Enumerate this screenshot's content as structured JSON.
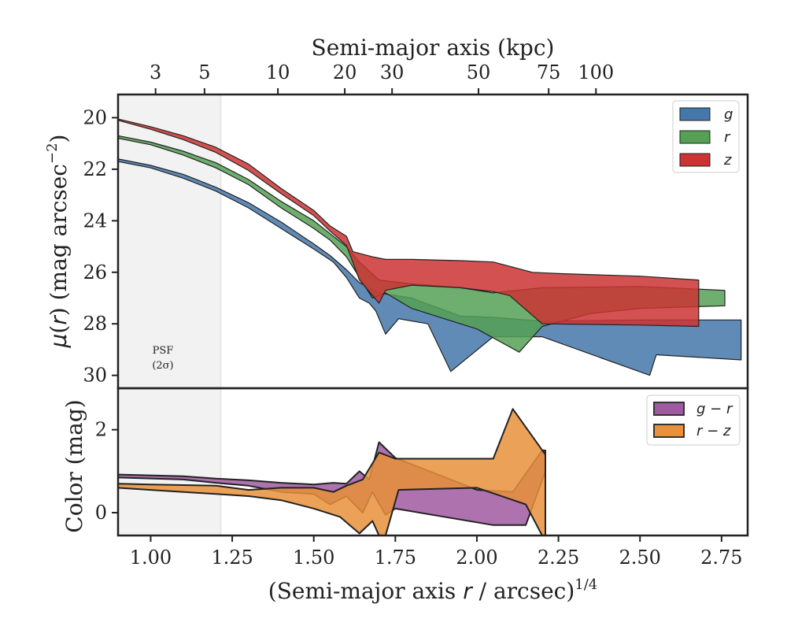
{
  "chart_data": [
    {
      "type": "area",
      "panel": "surface-brightness",
      "top_xlabel": "Semi-major axis (kpc)",
      "top_ticks": [
        {
          "label": "3",
          "at": 1.015
        },
        {
          "label": "5",
          "at": 1.165
        },
        {
          "label": "10",
          "at": 1.39
        },
        {
          "label": "20",
          "at": 1.595
        },
        {
          "label": "30",
          "at": 1.74
        },
        {
          "label": "50",
          "at": 2.005
        },
        {
          "label": "75",
          "at": 2.22
        },
        {
          "label": "100",
          "at": 2.365
        }
      ],
      "ylabel_html": "μ(r) (mag arcsec⁻²)",
      "ylabel_parts": {
        "mu": "μ",
        "r": "r",
        "rest": ") (mag arcsec",
        "sup": "−2",
        "close": ")"
      },
      "xlim": [
        0.9,
        2.83
      ],
      "ylim": [
        30.5,
        19.1
      ],
      "y_ticks": [
        20,
        22,
        24,
        26,
        28,
        30
      ],
      "y_inverted": true,
      "psf_region": [
        0.9,
        1.215
      ],
      "psf_label": [
        "PSF",
        "(2σ)"
      ],
      "legend_position": "top-right",
      "series": [
        {
          "name": "g",
          "color": "#4477aa",
          "upper": [
            [
              0.9,
              21.6
            ],
            [
              1.0,
              21.85
            ],
            [
              1.1,
              22.2
            ],
            [
              1.2,
              22.7
            ],
            [
              1.3,
              23.3
            ],
            [
              1.4,
              24.05
            ],
            [
              1.5,
              24.9
            ],
            [
              1.55,
              25.35
            ],
            [
              1.6,
              25.9
            ],
            [
              1.64,
              26.4
            ],
            [
              1.7,
              26.8
            ],
            [
              1.8,
              27.0
            ],
            [
              1.95,
              27.7
            ],
            [
              2.05,
              27.75
            ],
            [
              2.2,
              27.9
            ],
            [
              2.5,
              27.85
            ],
            [
              2.81,
              27.85
            ]
          ],
          "lower": [
            [
              0.9,
              21.7
            ],
            [
              1.0,
              21.95
            ],
            [
              1.1,
              22.35
            ],
            [
              1.2,
              22.85
            ],
            [
              1.3,
              23.5
            ],
            [
              1.4,
              24.3
            ],
            [
              1.5,
              25.1
            ],
            [
              1.56,
              25.6
            ],
            [
              1.6,
              26.2
            ],
            [
              1.64,
              27.0
            ],
            [
              1.67,
              27.2
            ],
            [
              1.69,
              27.5
            ],
            [
              1.72,
              28.4
            ],
            [
              1.76,
              27.8
            ],
            [
              1.85,
              28.0
            ],
            [
              1.92,
              29.85
            ],
            [
              2.05,
              28.5
            ],
            [
              2.2,
              28.5
            ],
            [
              2.53,
              30.0
            ],
            [
              2.55,
              29.2
            ],
            [
              2.81,
              29.4
            ]
          ]
        },
        {
          "name": "r",
          "color": "#55a055",
          "upper": [
            [
              0.9,
              20.7
            ],
            [
              1.0,
              20.95
            ],
            [
              1.1,
              21.3
            ],
            [
              1.2,
              21.75
            ],
            [
              1.3,
              22.4
            ],
            [
              1.4,
              23.25
            ],
            [
              1.5,
              24.0
            ],
            [
              1.55,
              24.5
            ],
            [
              1.6,
              25.0
            ],
            [
              1.64,
              25.6
            ],
            [
              1.7,
              26.3
            ],
            [
              1.8,
              26.45
            ],
            [
              1.95,
              26.6
            ],
            [
              2.05,
              26.8
            ],
            [
              2.2,
              26.6
            ],
            [
              2.5,
              26.55
            ],
            [
              2.76,
              26.7
            ]
          ],
          "lower": [
            [
              0.9,
              20.8
            ],
            [
              1.0,
              21.05
            ],
            [
              1.1,
              21.45
            ],
            [
              1.2,
              21.95
            ],
            [
              1.3,
              22.6
            ],
            [
              1.4,
              23.5
            ],
            [
              1.5,
              24.3
            ],
            [
              1.55,
              24.75
            ],
            [
              1.6,
              25.4
            ],
            [
              1.64,
              26.2
            ],
            [
              1.68,
              27.0
            ],
            [
              1.72,
              26.8
            ],
            [
              1.8,
              27.4
            ],
            [
              1.9,
              27.8
            ],
            [
              2.0,
              28.2
            ],
            [
              2.13,
              29.1
            ],
            [
              2.2,
              28.1
            ],
            [
              2.35,
              27.6
            ],
            [
              2.5,
              27.4
            ],
            [
              2.76,
              27.3
            ]
          ]
        },
        {
          "name": "z",
          "color": "#cc3333",
          "upper": [
            [
              0.9,
              20.05
            ],
            [
              1.0,
              20.35
            ],
            [
              1.1,
              20.7
            ],
            [
              1.2,
              21.15
            ],
            [
              1.3,
              21.8
            ],
            [
              1.4,
              22.75
            ],
            [
              1.5,
              23.6
            ],
            [
              1.55,
              24.2
            ],
            [
              1.6,
              24.6
            ],
            [
              1.62,
              25.2
            ],
            [
              1.68,
              25.4
            ],
            [
              1.72,
              25.5
            ],
            [
              1.8,
              25.5
            ],
            [
              1.95,
              25.55
            ],
            [
              2.05,
              25.6
            ],
            [
              2.17,
              26.0
            ],
            [
              2.25,
              26.05
            ],
            [
              2.5,
              26.15
            ],
            [
              2.68,
              26.3
            ]
          ],
          "lower": [
            [
              0.9,
              20.1
            ],
            [
              1.0,
              20.45
            ],
            [
              1.1,
              20.85
            ],
            [
              1.2,
              21.35
            ],
            [
              1.3,
              22.05
            ],
            [
              1.4,
              22.95
            ],
            [
              1.5,
              23.8
            ],
            [
              1.55,
              24.4
            ],
            [
              1.6,
              24.95
            ],
            [
              1.64,
              26.3
            ],
            [
              1.7,
              27.2
            ],
            [
              1.72,
              26.7
            ],
            [
              1.8,
              26.5
            ],
            [
              1.95,
              26.6
            ],
            [
              2.05,
              26.75
            ],
            [
              2.1,
              26.9
            ],
            [
              2.2,
              28.0
            ],
            [
              2.5,
              28.05
            ],
            [
              2.68,
              28.1
            ]
          ]
        }
      ]
    },
    {
      "type": "area",
      "panel": "color",
      "xlabel_parts": {
        "pre": "(Semi-major axis ",
        "r": "r",
        "post": " / arcsec)",
        "sup": "1/4"
      },
      "ylabel": "Color (mag)",
      "xlim": [
        0.9,
        2.83
      ],
      "ylim": [
        -0.55,
        3.0
      ],
      "x_ticks": [
        "1.00",
        "1.25",
        "1.50",
        "1.75",
        "2.00",
        "2.25",
        "2.50",
        "2.75"
      ],
      "x_tick_values": [
        1.0,
        1.25,
        1.5,
        1.75,
        2.0,
        2.25,
        2.5,
        2.75
      ],
      "y_ticks": [
        0,
        2
      ],
      "psf_region": [
        0.9,
        1.215
      ],
      "legend_position": "top-right",
      "series": [
        {
          "name": "g − r",
          "color": "#a05aa0",
          "upper": [
            [
              0.9,
              0.92
            ],
            [
              1.1,
              0.88
            ],
            [
              1.2,
              0.82
            ],
            [
              1.3,
              0.78
            ],
            [
              1.4,
              0.72
            ],
            [
              1.5,
              0.68
            ],
            [
              1.56,
              0.72
            ],
            [
              1.6,
              0.7
            ],
            [
              1.64,
              1.0
            ],
            [
              1.67,
              0.8
            ],
            [
              1.7,
              1.7
            ],
            [
              1.75,
              1.32
            ],
            [
              2.0,
              0.55
            ],
            [
              2.11,
              0.5
            ],
            [
              2.2,
              1.5
            ],
            [
              2.21,
              1.5
            ]
          ],
          "lower": [
            [
              0.9,
              0.85
            ],
            [
              1.1,
              0.8
            ],
            [
              1.2,
              0.72
            ],
            [
              1.3,
              0.65
            ],
            [
              1.4,
              0.5
            ],
            [
              1.5,
              0.45
            ],
            [
              1.55,
              0.2
            ],
            [
              1.6,
              0.4
            ],
            [
              1.65,
              0.0
            ],
            [
              1.68,
              0.5
            ],
            [
              1.72,
              -0.05
            ],
            [
              1.75,
              0.1
            ],
            [
              2.05,
              -0.3
            ],
            [
              2.15,
              -0.3
            ],
            [
              2.21,
              1.0
            ]
          ]
        },
        {
          "name": "r − z",
          "color": "#e8903a",
          "upper": [
            [
              0.9,
              0.7
            ],
            [
              1.0,
              0.68
            ],
            [
              1.2,
              0.65
            ],
            [
              1.3,
              0.55
            ],
            [
              1.4,
              0.6
            ],
            [
              1.5,
              0.6
            ],
            [
              1.56,
              0.5
            ],
            [
              1.6,
              0.65
            ],
            [
              1.65,
              0.8
            ],
            [
              1.7,
              1.45
            ],
            [
              1.75,
              1.3
            ],
            [
              2.05,
              1.3
            ],
            [
              2.11,
              2.5
            ],
            [
              2.21,
              1.4
            ]
          ],
          "lower": [
            [
              0.9,
              0.6
            ],
            [
              1.0,
              0.55
            ],
            [
              1.2,
              0.45
            ],
            [
              1.3,
              0.4
            ],
            [
              1.4,
              0.3
            ],
            [
              1.5,
              0.1
            ],
            [
              1.58,
              -0.1
            ],
            [
              1.64,
              -0.5
            ],
            [
              1.68,
              -0.2
            ],
            [
              1.7,
              -0.55
            ],
            [
              1.72,
              -0.55
            ],
            [
              1.76,
              0.55
            ],
            [
              2.0,
              0.6
            ],
            [
              2.15,
              0.2
            ],
            [
              2.2,
              -0.55
            ],
            [
              2.21,
              -0.55
            ]
          ]
        }
      ]
    }
  ]
}
